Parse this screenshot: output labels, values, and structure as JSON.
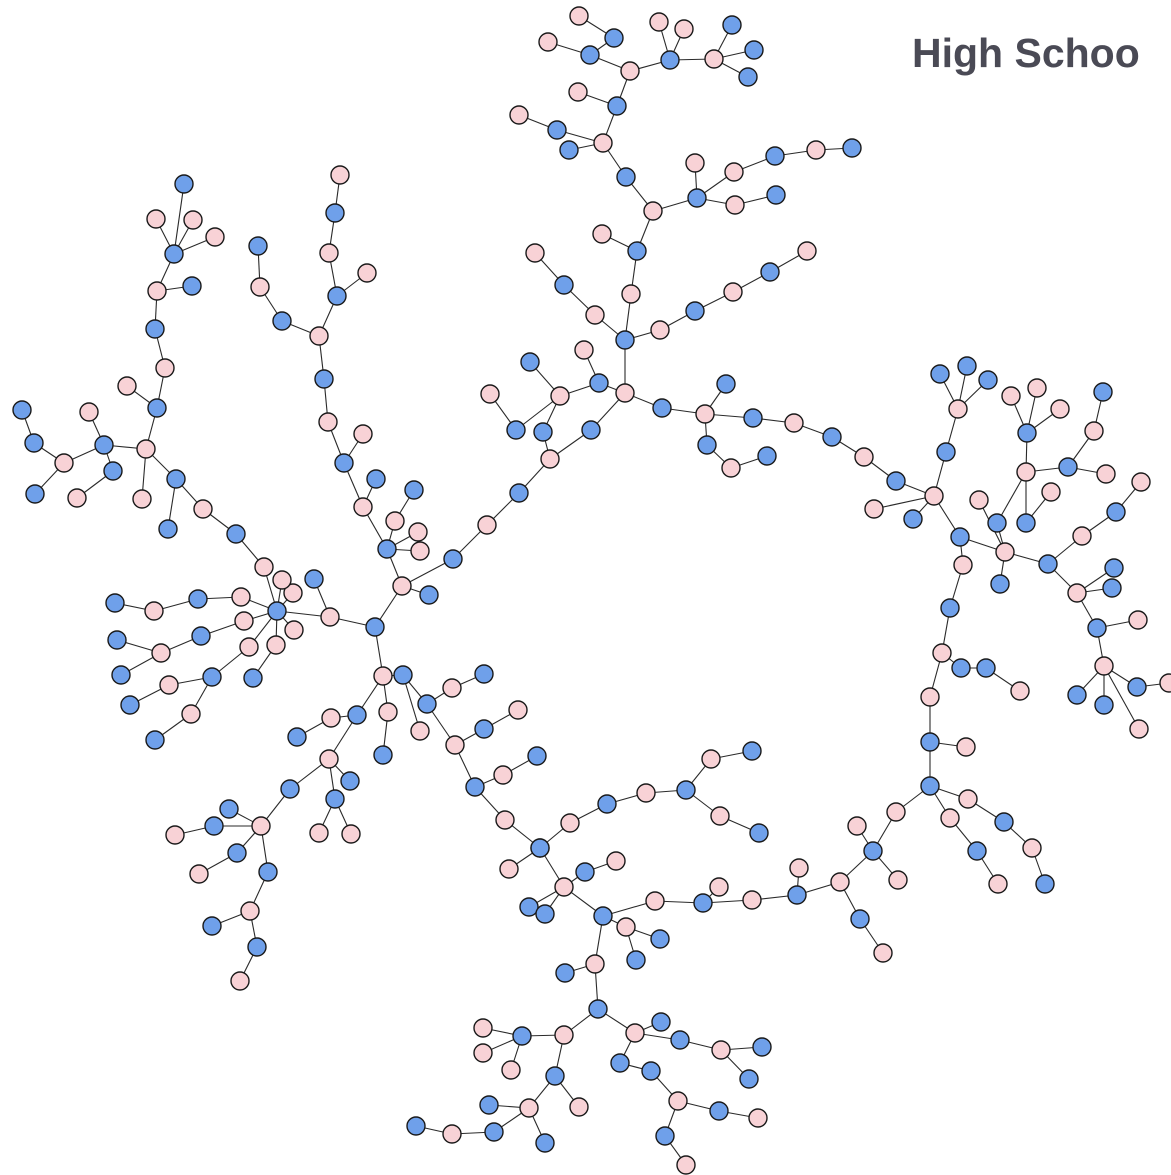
{
  "title": "High Schoo",
  "footer": "",
  "colors": {
    "male": "#6fa0ea",
    "female": "#f8d2d6"
  },
  "legend_note": ""
}
